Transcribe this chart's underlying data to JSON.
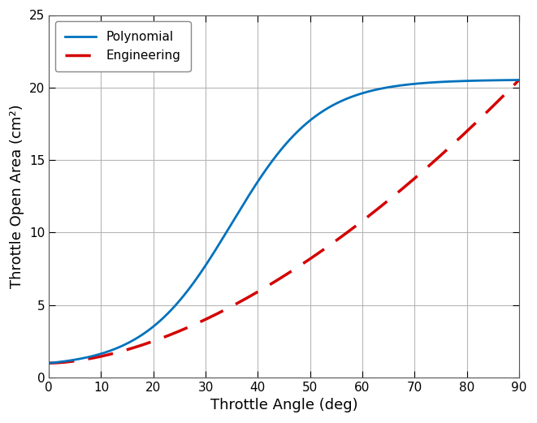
{
  "title": "",
  "xlabel": "Throttle Angle (deg)",
  "ylabel": "Throttle Open Area (cm²)",
  "xlim": [
    0,
    90
  ],
  "ylim": [
    0,
    25
  ],
  "xticks": [
    0,
    10,
    20,
    30,
    40,
    50,
    60,
    70,
    80,
    90
  ],
  "yticks": [
    0,
    5,
    10,
    15,
    20,
    25
  ],
  "poly_color": "#0072BD",
  "eng_color": "#D40000",
  "poly_linewidth": 2.0,
  "eng_linewidth": 2.5,
  "legend_labels": [
    "Polynomial",
    "Engineering"
  ],
  "background_color": "#ffffff",
  "grid_color": "#b0b0b0",
  "A_max": 20.52,
  "A_min": 1.0,
  "theta_max": 90.0
}
